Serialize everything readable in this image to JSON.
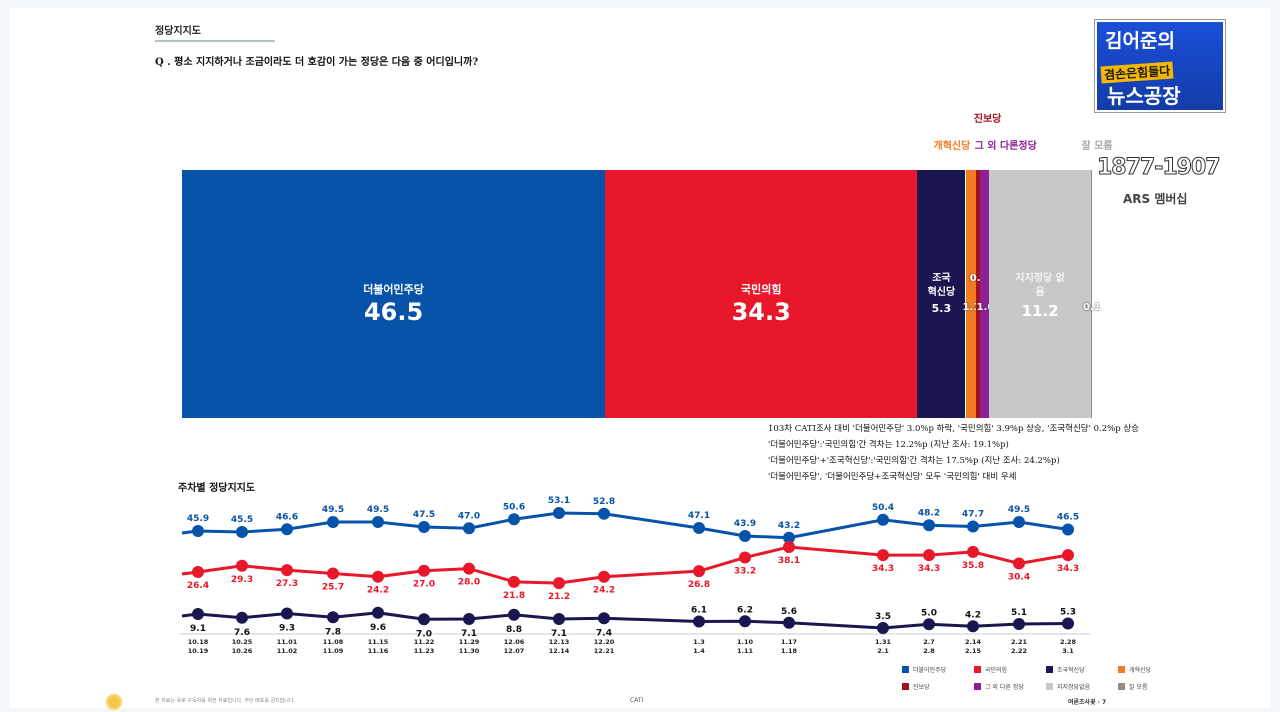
{
  "header": {
    "section": "정당지지도",
    "question": "Q . 평소 지지하거나 조금이라도 더 호감이 가는 정당은 다음 중 어디입니까?"
  },
  "logo": {
    "line1": "김어준의",
    "line2": "겸손은힘들다",
    "line3": "뉴스공장",
    "years": "1877-1907",
    "sub": "ARS 멤버십"
  },
  "colors": {
    "minjoo": "#0753a9",
    "ppp": "#e8172a",
    "rebuild": "#1a1650",
    "reform": "#f47c20",
    "progressive": "#a3131f",
    "other": "#8e1f97",
    "none": "#c8c8c8",
    "dontknow": "#9a8c80"
  },
  "chart_data": [
    {
      "type": "bar",
      "orientation": "horizontal-stacked",
      "xlim": [
        0,
        100
      ],
      "segments": [
        {
          "name": "더불어민주당",
          "value": 46.5,
          "color": "#0753a9"
        },
        {
          "name": "국민의힘",
          "value": 34.3,
          "color": "#e8172a"
        },
        {
          "name": "조국혁신당",
          "label": "조국 혁신당",
          "value": 5.3,
          "color": "#1a1650"
        },
        {
          "name": "개혁신당",
          "value": 1.1,
          "color": "#f47c20"
        },
        {
          "name": "진보당",
          "value": 0.5,
          "color": "#a3131f"
        },
        {
          "name": "그 외 다른정당",
          "value": 1.0,
          "color": "#8e1f97"
        },
        {
          "name": "지지정당 없음",
          "value": 11.2,
          "color": "#c8c8c8"
        },
        {
          "name": "잘 모름",
          "value": 0.1,
          "color": "#9a8c80"
        }
      ]
    },
    {
      "type": "line",
      "title": "주차별 정당지지도",
      "categories": [
        [
          "10.18",
          "10.19"
        ],
        [
          "10.25",
          "10.26"
        ],
        [
          "11.01",
          "11.02"
        ],
        [
          "11.08",
          "11.09"
        ],
        [
          "11.15",
          "11.16"
        ],
        [
          "11.22",
          "11.23"
        ],
        [
          "11.29",
          "11.30"
        ],
        [
          "12.06",
          "12.07"
        ],
        [
          "12.13",
          "12.14"
        ],
        [
          "12.20",
          "12.21"
        ],
        [
          "1.3",
          "1.4"
        ],
        [
          "1.10",
          "1.11"
        ],
        [
          "1.17",
          "1.18"
        ],
        [
          "1.31",
          "2.1"
        ],
        [
          "2.7",
          "2.8"
        ],
        [
          "2.14",
          "2.15"
        ],
        [
          "2.21",
          "2.22"
        ],
        [
          "2.28",
          "3.1"
        ]
      ],
      "series": [
        {
          "name": "더불어민주당",
          "color": "#0753a9",
          "values": [
            45.9,
            45.5,
            46.6,
            49.5,
            49.5,
            47.5,
            47.0,
            50.6,
            53.1,
            52.8,
            47.1,
            43.9,
            43.2,
            50.4,
            48.2,
            47.7,
            49.5,
            46.5
          ]
        },
        {
          "name": "국민의힘",
          "color": "#e8172a",
          "values": [
            26.4,
            29.3,
            27.3,
            25.7,
            24.2,
            27.0,
            28.0,
            21.8,
            21.2,
            24.2,
            26.8,
            33.2,
            38.1,
            34.3,
            34.3,
            35.8,
            30.4,
            34.3
          ]
        },
        {
          "name": "조국혁신당",
          "color": "#1a1650",
          "values": [
            9.1,
            7.6,
            9.3,
            7.8,
            9.6,
            7.0,
            7.1,
            8.8,
            7.1,
            7.4,
            6.1,
            6.2,
            5.6,
            3.5,
            5.0,
            4.2,
            5.1,
            5.3
          ]
        }
      ],
      "legend": [
        "더불어민주당",
        "국민의힘",
        "조국혁신당",
        "개혁신당",
        "진보당",
        "그 외 다른 정당",
        "지지정당없음",
        "잘 모름"
      ],
      "legend_position": "bottom-right"
    }
  ],
  "notes": [
    "103차 CATI조사 대비 '더불어민주당' 3.0%p 하락, '국민의힘' 3.9%p 상승, '조국혁신당' 0.2%p 상승",
    "'더불어민주당':'국민의힘'간 격차는 12.2%p (지난 조사: 19.1%p)",
    "'더불어민주당'+'조국혁신당':'국민의힘'간 격차는 17.5%p (지난 조사: 24.2%p)",
    "'더불어민주당', '더불어민주당+조국혁신당' 모두 '국민의힘' 대비 우세"
  ],
  "footer": {
    "left": "본 자료는 유로 구독자를 위한 자료입니다. 무단 배포를 금지합니다.",
    "center": "CATI",
    "right": "여론조사꽃 · 7"
  }
}
